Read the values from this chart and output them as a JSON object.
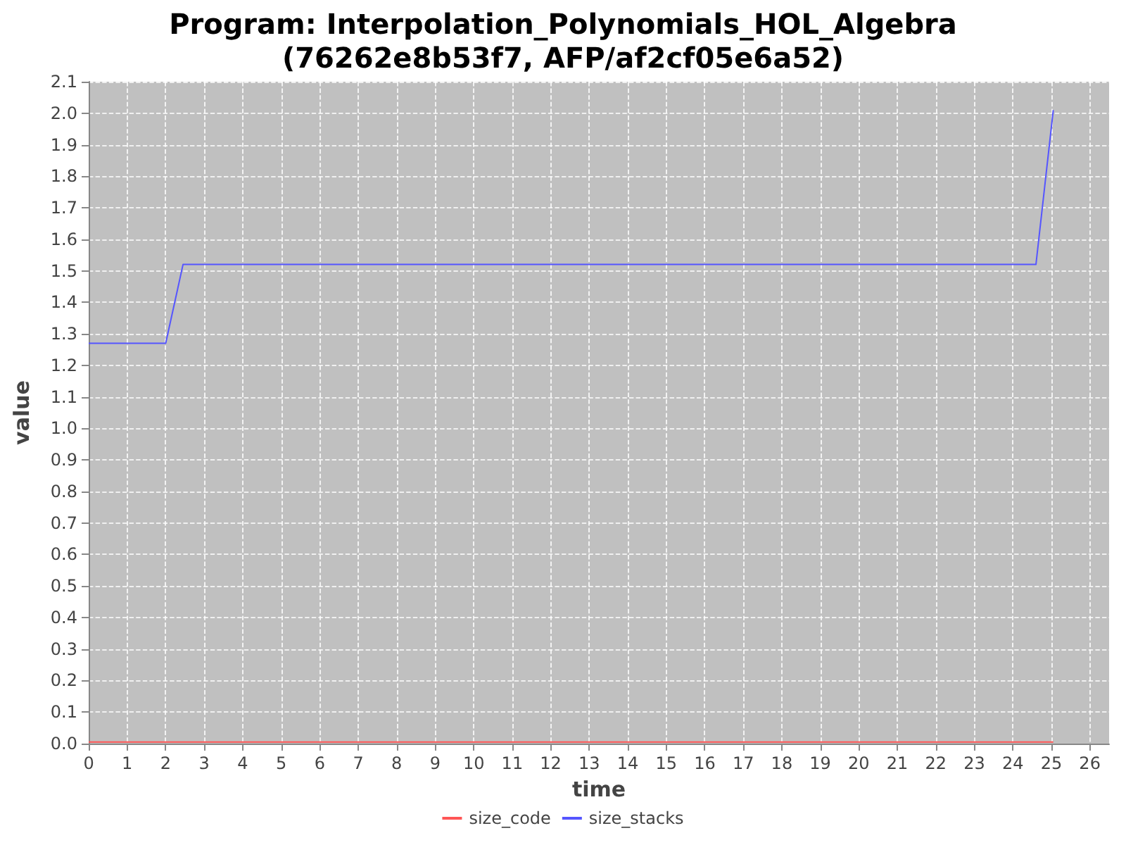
{
  "chart_data": {
    "type": "line",
    "title": "Program: Interpolation_Polynomials_HOL_Algebra",
    "subtitle": "(76262e8b53f7, AFP/af2cf05e6a52)",
    "xlabel": "time",
    "ylabel": "value",
    "series": [
      {
        "name": "size_code",
        "color": "#ff5555",
        "x": [
          0,
          25.05
        ],
        "values": [
          0.005,
          0.005
        ]
      },
      {
        "name": "size_stacks",
        "color": "#5555ff",
        "x": [
          0,
          2,
          2.45,
          24.6,
          25.05
        ],
        "values": [
          1.27,
          1.27,
          1.52,
          1.52,
          2.01
        ]
      }
    ],
    "xlim": [
      0,
      26.5
    ],
    "xticks": [
      0,
      1,
      2,
      3,
      4,
      5,
      6,
      7,
      8,
      9,
      10,
      11,
      12,
      13,
      14,
      15,
      16,
      17,
      18,
      19,
      20,
      21,
      22,
      23,
      24,
      25,
      26
    ],
    "ylim": [
      0,
      2.1
    ],
    "yticks": [
      {
        "value": 0,
        "label": "0.0"
      },
      0.1,
      0.2,
      0.3,
      0.4,
      0.5,
      0.6,
      0.7,
      0.8,
      0.9,
      {
        "value": 1,
        "label": "1.0"
      },
      1.1,
      1.2,
      1.3,
      1.4,
      1.5,
      1.6,
      1.7,
      1.8,
      1.9,
      {
        "value": 2,
        "label": "2.0"
      },
      2.1
    ],
    "grid": true,
    "legend": "bottom",
    "marker": "none",
    "line_style": "solid"
  }
}
